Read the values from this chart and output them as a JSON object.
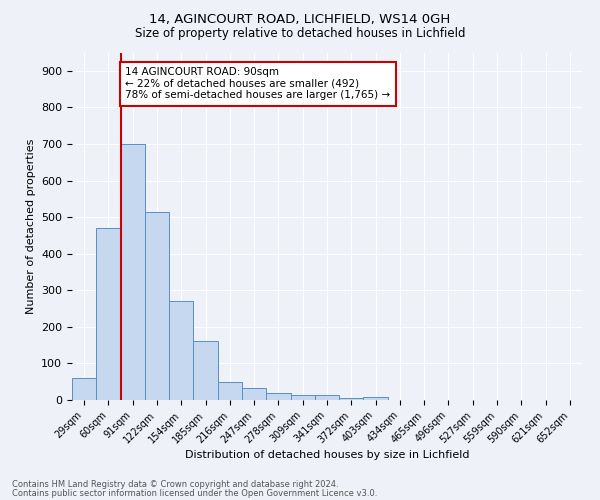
{
  "title1": "14, AGINCOURT ROAD, LICHFIELD, WS14 0GH",
  "title2": "Size of property relative to detached houses in Lichfield",
  "xlabel": "Distribution of detached houses by size in Lichfield",
  "ylabel": "Number of detached properties",
  "categories": [
    "29sqm",
    "60sqm",
    "91sqm",
    "122sqm",
    "154sqm",
    "185sqm",
    "216sqm",
    "247sqm",
    "278sqm",
    "309sqm",
    "341sqm",
    "372sqm",
    "403sqm",
    "434sqm",
    "465sqm",
    "496sqm",
    "527sqm",
    "559sqm",
    "590sqm",
    "621sqm",
    "652sqm"
  ],
  "values": [
    60,
    470,
    700,
    515,
    270,
    160,
    48,
    32,
    20,
    15,
    15,
    5,
    8,
    0,
    0,
    0,
    0,
    0,
    0,
    0,
    0
  ],
  "bar_color": "#c5d8f0",
  "bar_edge_color": "#5a8fc3",
  "line_color": "#cc0000",
  "ylim": [
    0,
    950
  ],
  "yticks": [
    0,
    100,
    200,
    300,
    400,
    500,
    600,
    700,
    800,
    900
  ],
  "annotation_text": "14 AGINCOURT ROAD: 90sqm\n← 22% of detached houses are smaller (492)\n78% of semi-detached houses are larger (1,765) →",
  "annotation_box_color": "#ffffff",
  "annotation_box_edge": "#cc0000",
  "footer1": "Contains HM Land Registry data © Crown copyright and database right 2024.",
  "footer2": "Contains public sector information licensed under the Open Government Licence v3.0.",
  "bg_color": "#eef2f8",
  "plot_bg_color": "#eef2f8",
  "grid_color": "#ffffff"
}
